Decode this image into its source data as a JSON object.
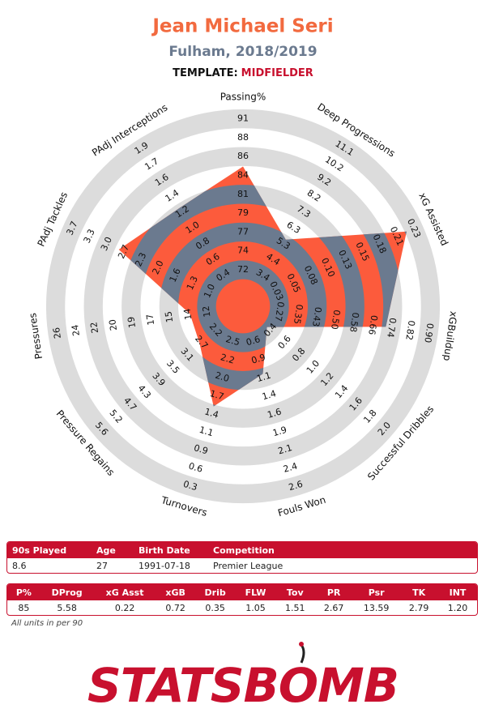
{
  "chart_data": {
    "type": "radar",
    "title": "Jean Michael Seri",
    "subtitle": "Fulham, 2018/2019",
    "template_label": "TEMPLATE:",
    "template": "MIDFIELDER",
    "axes": [
      "Passing%",
      "Deep Progressions",
      "xG Assisted",
      "xGBuildup",
      "Successful Dribbles",
      "Fouls Won",
      "Turnovers",
      "Pressure Regains",
      "Pressures",
      "PAdj Tackles",
      "PAdj Interceptions"
    ],
    "values": [
      85,
      5.58,
      0.22,
      0.72,
      0.35,
      1.05,
      1.51,
      2.67,
      13.59,
      2.79,
      1.2
    ],
    "ticks": [
      [
        72,
        74,
        77,
        79,
        81,
        84,
        86,
        88,
        91
      ],
      [
        3.4,
        4.4,
        5.3,
        6.3,
        7.3,
        8.2,
        9.2,
        10.2,
        11.1
      ],
      [
        0.03,
        0.05,
        0.08,
        {
          "value": 0.1,
          "label": "0.10"
        },
        0.13,
        0.15,
        0.18,
        0.21,
        0.23
      ],
      [
        0.27,
        0.35,
        0.43,
        {
          "value": 0.5,
          "label": "0.50"
        },
        0.58,
        0.66,
        0.74,
        0.82,
        {
          "value": 0.9,
          "label": "0.90"
        }
      ],
      [
        0.4,
        0.6,
        0.8,
        {
          "value": 1,
          "label": "1.0"
        },
        1.2,
        1.4,
        1.6,
        1.8,
        {
          "value": 2,
          "label": "2.0"
        }
      ],
      [
        0.6,
        0.9,
        1.1,
        1.4,
        1.6,
        1.9,
        2.1,
        2.4,
        2.6
      ],
      [
        2.5,
        2.2,
        {
          "value": 2,
          "label": "2.0"
        },
        1.7,
        1.4,
        1.1,
        0.9,
        0.6,
        0.3
      ],
      [
        2.2,
        2.7,
        3.1,
        3.5,
        3.9,
        4.3,
        4.7,
        5.2,
        5.6
      ],
      [
        12,
        14,
        15,
        17,
        19,
        20,
        22,
        24,
        26
      ],
      [
        {
          "value": 1,
          "label": "1.0"
        },
        1.3,
        1.6,
        {
          "value": 2,
          "label": "2.0"
        },
        2.3,
        2.7,
        {
          "value": 3,
          "label": "3.0"
        },
        3.3,
        3.7
      ],
      [
        0.4,
        0.6,
        0.8,
        {
          "value": 1,
          "label": "1.0"
        },
        1.2,
        1.4,
        1.6,
        1.7,
        1.9
      ]
    ],
    "colors": {
      "fill": "#fc5b3c",
      "fill_on_ring": "#6b7a8f",
      "ring": "#dcdcdc"
    }
  },
  "info_table": {
    "header": [
      "90s Played",
      "Age",
      "Birth Date",
      "Competition"
    ],
    "rows": [
      [
        "8.6",
        "27",
        "1991-07-18",
        "Premier League"
      ]
    ]
  },
  "stats_table": {
    "header": [
      "P%",
      "DProg",
      "xG Asst",
      "xGB",
      "Drib",
      "FLW",
      "Tov",
      "PR",
      "Psr",
      "TK",
      "INT"
    ],
    "rows": [
      [
        "85",
        "5.58",
        "0.22",
        "0.72",
        "0.35",
        "1.05",
        "1.51",
        "2.67",
        "13.59",
        "2.79",
        "1.20"
      ]
    ]
  },
  "footnote": "All units in per 90",
  "logo": "STATSBOMB"
}
